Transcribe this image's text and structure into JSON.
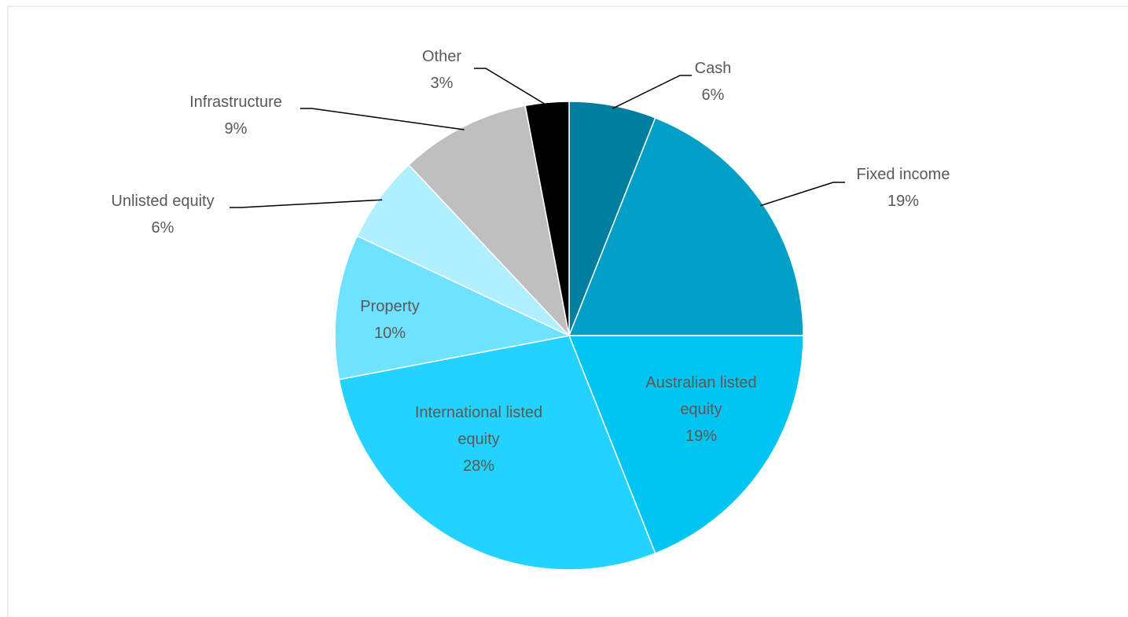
{
  "chart_data": {
    "type": "pie",
    "categories": [
      "Cash",
      "Fixed income",
      "Australian listed equity",
      "International listed equity",
      "Property",
      "Unlisted equity",
      "Infrastructure",
      "Other"
    ],
    "values": [
      6,
      19,
      19,
      28,
      10,
      6,
      9,
      3
    ],
    "value_labels": [
      "6%",
      "19%",
      "19%",
      "28%",
      "10%",
      "6%",
      "9%",
      "3%"
    ],
    "colors": [
      "#007e9e",
      "#00a0c6",
      "#00c5f0",
      "#22d3ff",
      "#6fe2ff",
      "#b0efff",
      "#bfbfbf",
      "#000000"
    ]
  }
}
